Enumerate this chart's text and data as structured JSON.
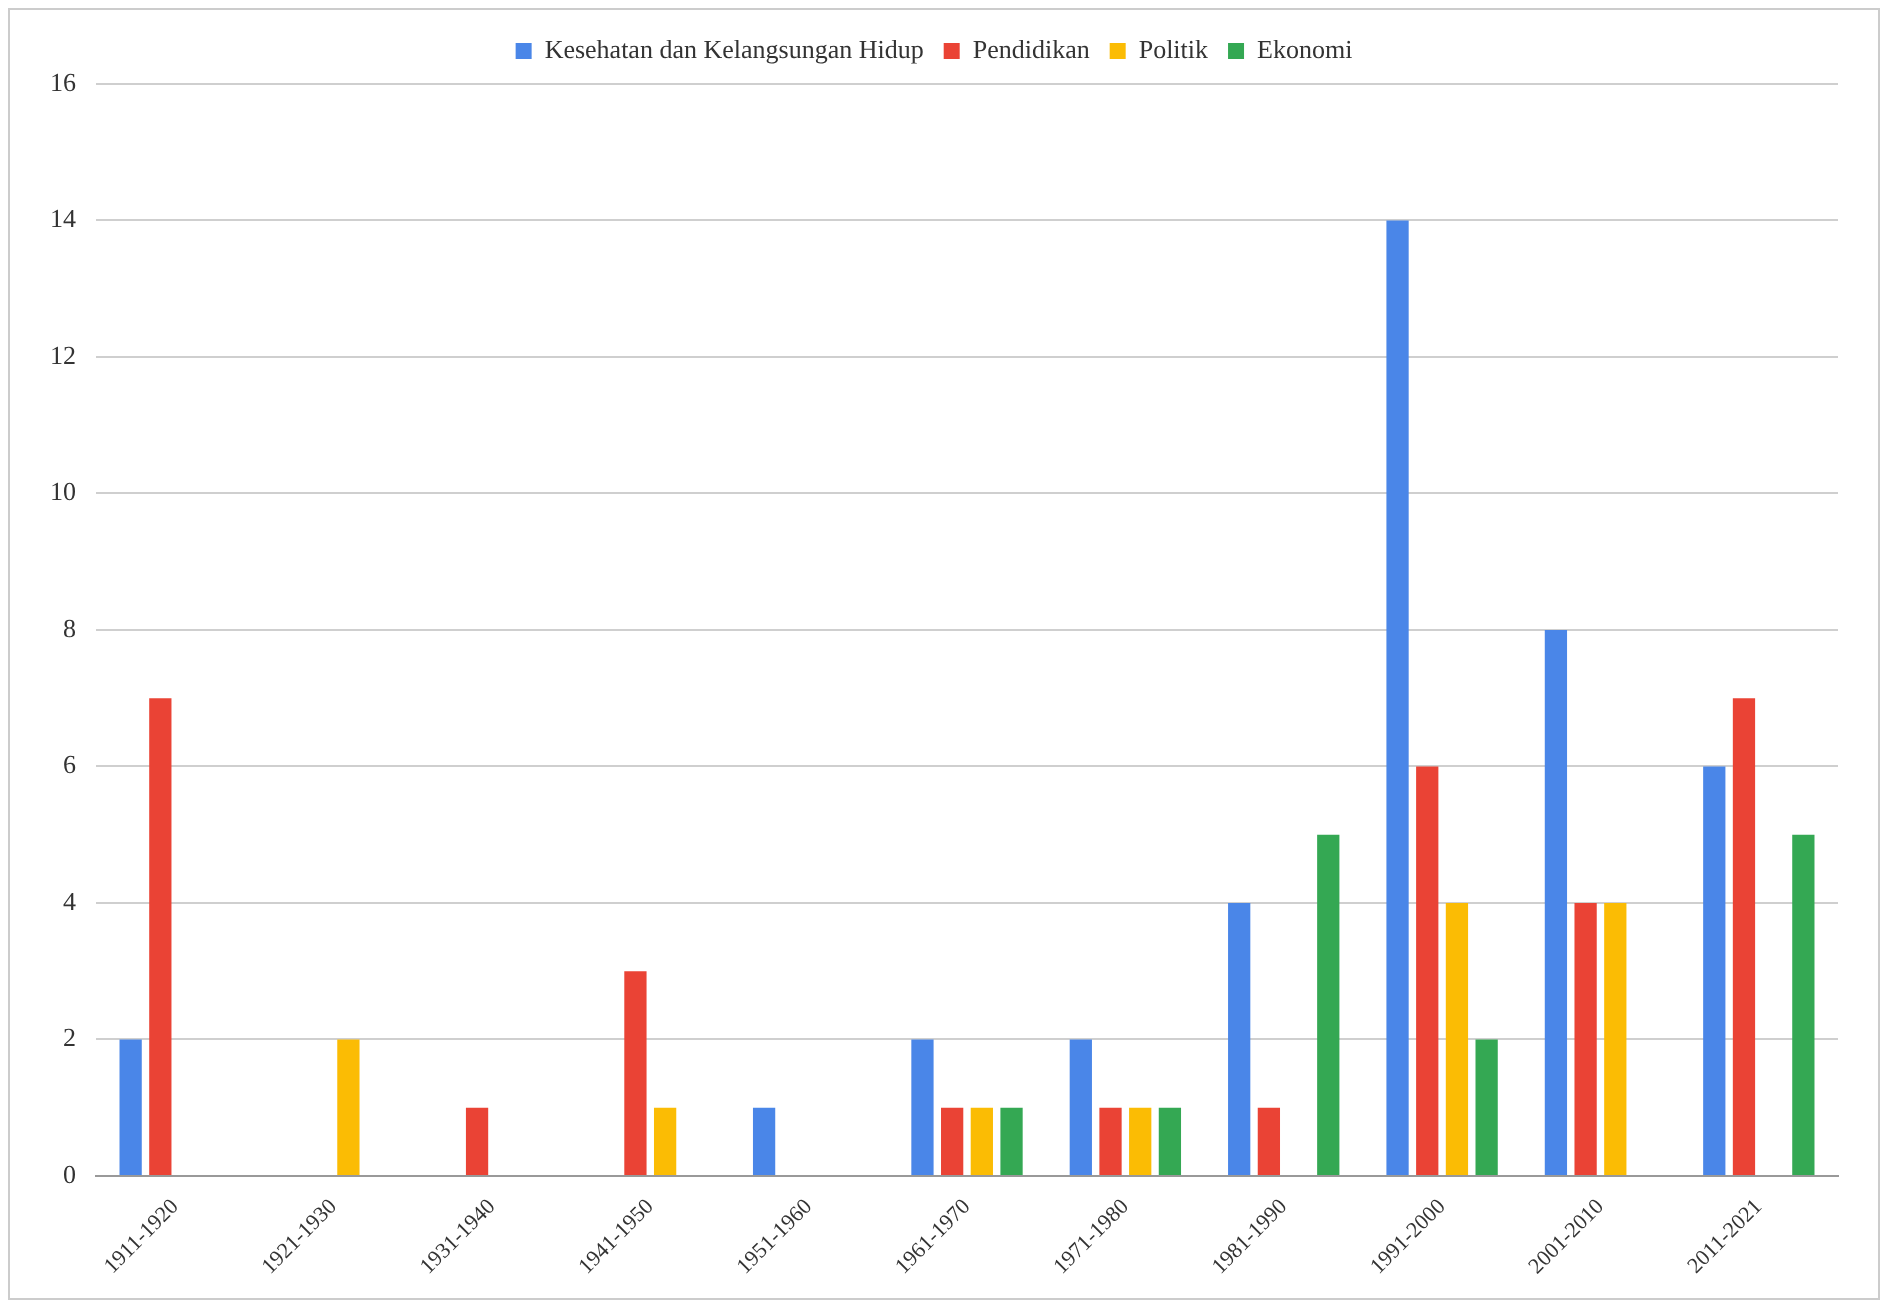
{
  "chart_data": {
    "type": "bar",
    "categories": [
      "1911-1920",
      "1921-1930",
      "1931-1940",
      "1941-1950",
      "1951-1960",
      "1961-1970",
      "1971-1980",
      "1981-1990",
      "1991-2000",
      "2001-2010",
      "2011-2021"
    ],
    "series": [
      {
        "name": "Kesehatan dan Kelangsungan Hidup",
        "color": "#4a86e8",
        "values": [
          2,
          0,
          0,
          0,
          1,
          2,
          2,
          4,
          14,
          8,
          6
        ]
      },
      {
        "name": "Pendidikan",
        "color": "#ea4335",
        "values": [
          7,
          0,
          1,
          3,
          0,
          1,
          1,
          1,
          6,
          4,
          7
        ]
      },
      {
        "name": "Politik",
        "color": "#fbbc04",
        "values": [
          0,
          2,
          0,
          1,
          0,
          1,
          1,
          0,
          4,
          4,
          0
        ]
      },
      {
        "name": "Ekonomi",
        "color": "#34a853",
        "values": [
          0,
          0,
          0,
          0,
          0,
          1,
          1,
          5,
          2,
          0,
          5
        ]
      }
    ],
    "ylim": [
      0,
      16
    ],
    "yticks": [
      0,
      2,
      4,
      6,
      8,
      10,
      12,
      14,
      16
    ],
    "grid": "y",
    "legend": "top"
  }
}
